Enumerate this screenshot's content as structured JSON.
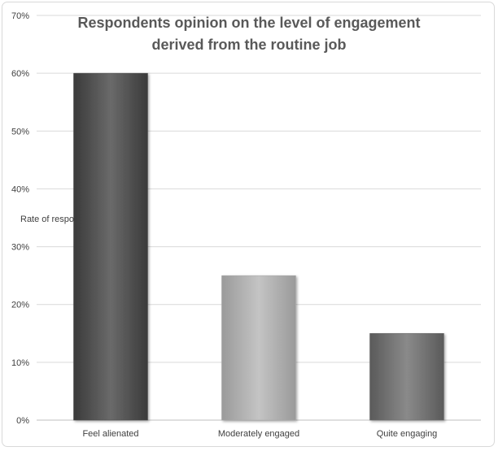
{
  "chart_data": {
    "type": "bar",
    "title": "Respondents opinion on the level of engagement derived from the routine job",
    "title_lines": [
      "Respondents opinion on the level of engagement",
      "derived from the routine job"
    ],
    "ylabel": "Rate of respo",
    "xlabel": "",
    "categories": [
      "Feel alienated",
      "Moderately engaged",
      "Quite engaging"
    ],
    "values": [
      60,
      25,
      15
    ],
    "ylim": [
      0,
      70
    ],
    "yticks": [
      0,
      10,
      20,
      30,
      40,
      50,
      60,
      70
    ],
    "ytick_labels": [
      "0%",
      "10%",
      "20%",
      "30%",
      "40%",
      "50%",
      "60%",
      "70%"
    ],
    "bar_colors": [
      "#4d4d4d",
      "#a6a6a6",
      "#6e6e6e"
    ],
    "grid": true,
    "legend": "none"
  }
}
